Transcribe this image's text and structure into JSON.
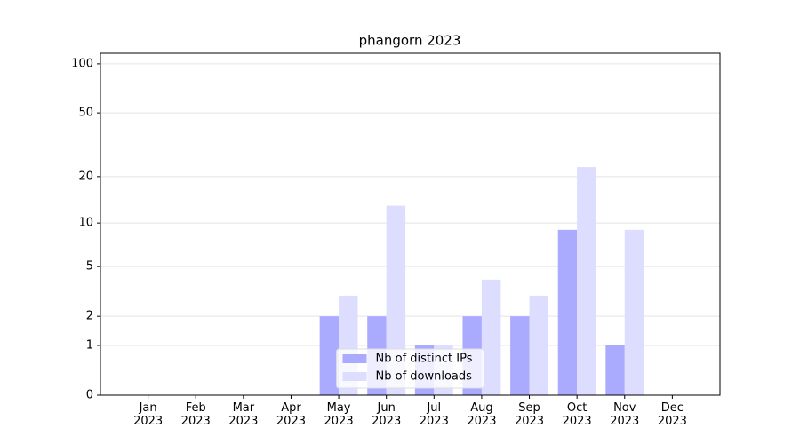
{
  "chart_data": {
    "type": "bar",
    "title": "phangorn 2023",
    "categories": [
      "Jan\n2023",
      "Feb\n2023",
      "Mar\n2023",
      "Apr\n2023",
      "May\n2023",
      "Jun\n2023",
      "Jul\n2023",
      "Aug\n2023",
      "Sep\n2023",
      "Oct\n2023",
      "Nov\n2023",
      "Dec\n2023"
    ],
    "series": [
      {
        "name": "Nb of distinct IPs",
        "color": "#aaaaff",
        "values": [
          0,
          0,
          0,
          0,
          2,
          2,
          1,
          2,
          2,
          9,
          1,
          0
        ]
      },
      {
        "name": "Nb of downloads",
        "color": "#ddddff",
        "values": [
          0,
          0,
          0,
          0,
          3,
          13,
          1,
          4,
          3,
          23,
          9,
          0
        ]
      }
    ],
    "yscale": "log1p",
    "ylim": [
      0,
      116
    ],
    "yticks": [
      0,
      1,
      2,
      5,
      10,
      20,
      50,
      100
    ],
    "grid": true,
    "legend": "lower center"
  }
}
